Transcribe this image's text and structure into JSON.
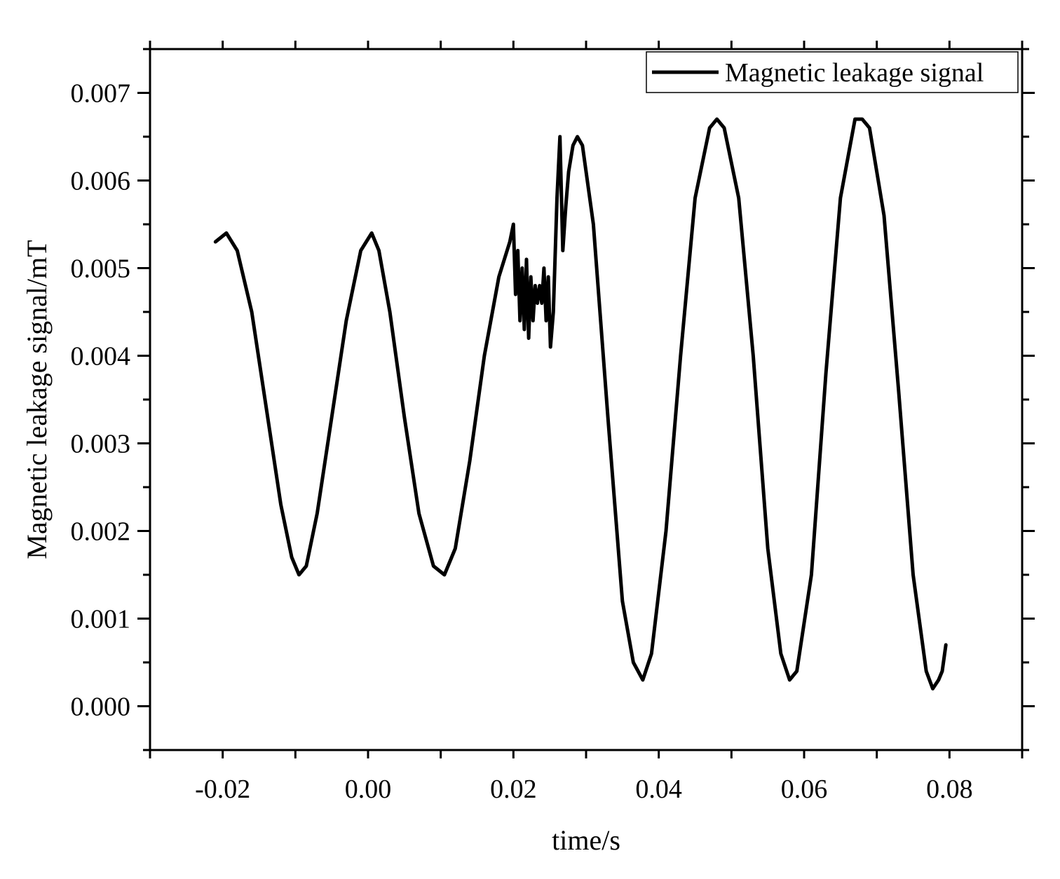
{
  "chart_data": {
    "type": "line",
    "title": "",
    "xlabel": "time/s",
    "ylabel": "Magnetic leakage signal/mT",
    "xlim": [
      -0.03,
      0.09
    ],
    "ylim": [
      -0.0005,
      0.0075
    ],
    "x_ticks": [
      -0.02,
      0.0,
      0.02,
      0.04,
      0.06,
      0.08
    ],
    "x_tick_labels": [
      "-0.02",
      "0.00",
      "0.02",
      "0.04",
      "0.06",
      "0.08"
    ],
    "y_ticks": [
      0.0,
      0.001,
      0.002,
      0.003,
      0.004,
      0.005,
      0.006,
      0.007
    ],
    "y_tick_labels": [
      "0.000",
      "0.001",
      "0.002",
      "0.003",
      "0.004",
      "0.005",
      "0.006",
      "0.007"
    ],
    "grid": false,
    "legend_position": "top-right",
    "series": [
      {
        "name": "Magnetic leakage signal",
        "color": "#000000",
        "x": [
          -0.021,
          -0.0195,
          -0.018,
          -0.016,
          -0.014,
          -0.012,
          -0.0105,
          -0.0095,
          -0.0085,
          -0.007,
          -0.005,
          -0.003,
          -0.001,
          0.0005,
          0.0015,
          0.003,
          0.005,
          0.007,
          0.009,
          0.0105,
          0.012,
          0.014,
          0.016,
          0.018,
          0.0195,
          0.02,
          0.0203,
          0.0206,
          0.0209,
          0.0212,
          0.0215,
          0.0218,
          0.0221,
          0.0224,
          0.0227,
          0.023,
          0.0233,
          0.0236,
          0.0239,
          0.0242,
          0.0245,
          0.0248,
          0.0251,
          0.0255,
          0.026,
          0.0264,
          0.0268,
          0.0272,
          0.0276,
          0.0282,
          0.0288,
          0.0295,
          0.031,
          0.033,
          0.035,
          0.0365,
          0.0378,
          0.039,
          0.041,
          0.043,
          0.045,
          0.047,
          0.048,
          0.049,
          0.051,
          0.053,
          0.055,
          0.0568,
          0.058,
          0.059,
          0.061,
          0.063,
          0.065,
          0.067,
          0.068,
          0.069,
          0.071,
          0.073,
          0.075,
          0.0768,
          0.0777,
          0.0785,
          0.079,
          0.0795
        ],
        "y": [
          0.0053,
          0.0054,
          0.0052,
          0.0045,
          0.0034,
          0.0023,
          0.0017,
          0.0015,
          0.0016,
          0.0022,
          0.0033,
          0.0044,
          0.0052,
          0.0054,
          0.0052,
          0.0045,
          0.0033,
          0.0022,
          0.0016,
          0.0015,
          0.0018,
          0.0028,
          0.004,
          0.0049,
          0.0053,
          0.0055,
          0.0047,
          0.0052,
          0.0044,
          0.005,
          0.0043,
          0.0051,
          0.0042,
          0.0049,
          0.0044,
          0.0048,
          0.0046,
          0.0048,
          0.0046,
          0.005,
          0.0044,
          0.0049,
          0.0041,
          0.0045,
          0.0058,
          0.0065,
          0.0052,
          0.0057,
          0.0061,
          0.0064,
          0.0065,
          0.0064,
          0.0055,
          0.0033,
          0.0012,
          0.0005,
          0.0003,
          0.0006,
          0.002,
          0.004,
          0.0058,
          0.0066,
          0.0067,
          0.0066,
          0.0058,
          0.004,
          0.0018,
          0.0006,
          0.0003,
          0.0004,
          0.0015,
          0.0038,
          0.0058,
          0.0067,
          0.0067,
          0.0066,
          0.0056,
          0.0036,
          0.0015,
          0.0004,
          0.0002,
          0.0003,
          0.0004,
          0.0007
        ]
      }
    ]
  }
}
